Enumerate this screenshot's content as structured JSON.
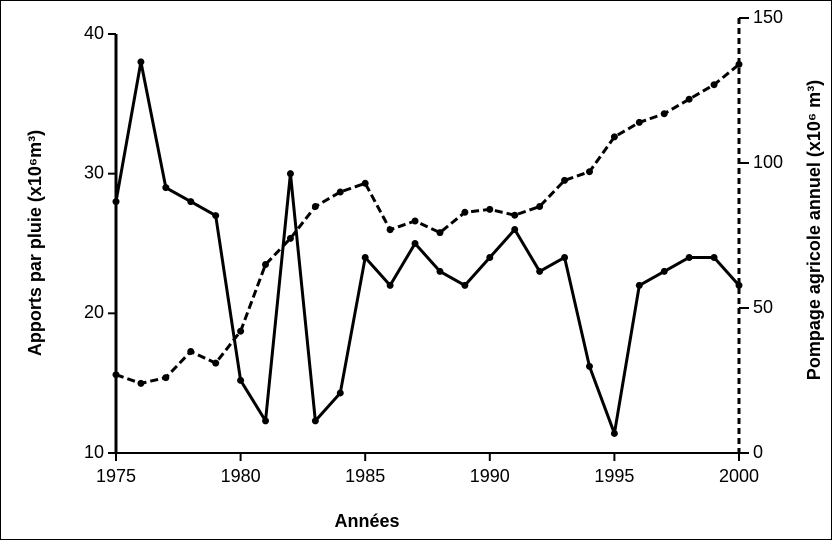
{
  "chart_data": {
    "type": "line",
    "x": [
      1975,
      1976,
      1977,
      1978,
      1979,
      1980,
      1981,
      1982,
      1983,
      1984,
      1985,
      1986,
      1987,
      1988,
      1989,
      1990,
      1991,
      1992,
      1993,
      1994,
      1995,
      1996,
      1997,
      1998,
      1999,
      2000
    ],
    "series": [
      {
        "color": "#000000",
        "style": "solid",
        "axis": "y",
        "values": [
          28,
          38,
          29,
          28,
          27,
          15.2,
          12.3,
          30,
          12.3,
          14.3,
          24,
          22,
          25,
          23,
          22,
          24,
          26,
          23,
          24,
          16.2,
          11.4,
          22,
          23,
          24,
          24,
          22
        ]
      },
      {
        "color": "#000000",
        "style": "dashed",
        "axis": "y2",
        "values": [
          27,
          24,
          26,
          35,
          31,
          42,
          65,
          74,
          85,
          90,
          93,
          77,
          80,
          76,
          83,
          84,
          82,
          85,
          94,
          97,
          109,
          114,
          117,
          122,
          127,
          134
        ]
      }
    ],
    "xlim": [
      1975,
      2000
    ],
    "xticks": [
      1975,
      1980,
      1985,
      1990,
      1995,
      2000
    ],
    "ylim": [
      10,
      40
    ],
    "yticks": [
      10,
      20,
      30,
      40
    ],
    "y2lim": [
      0,
      150
    ],
    "y2ticks": [
      0,
      50,
      100,
      150
    ],
    "xlabel": "Années",
    "ylabel": "Apports par pluie (x10⁶m³)",
    "y2label": "Pompage agricole annuel (x10⁶ m³)"
  }
}
